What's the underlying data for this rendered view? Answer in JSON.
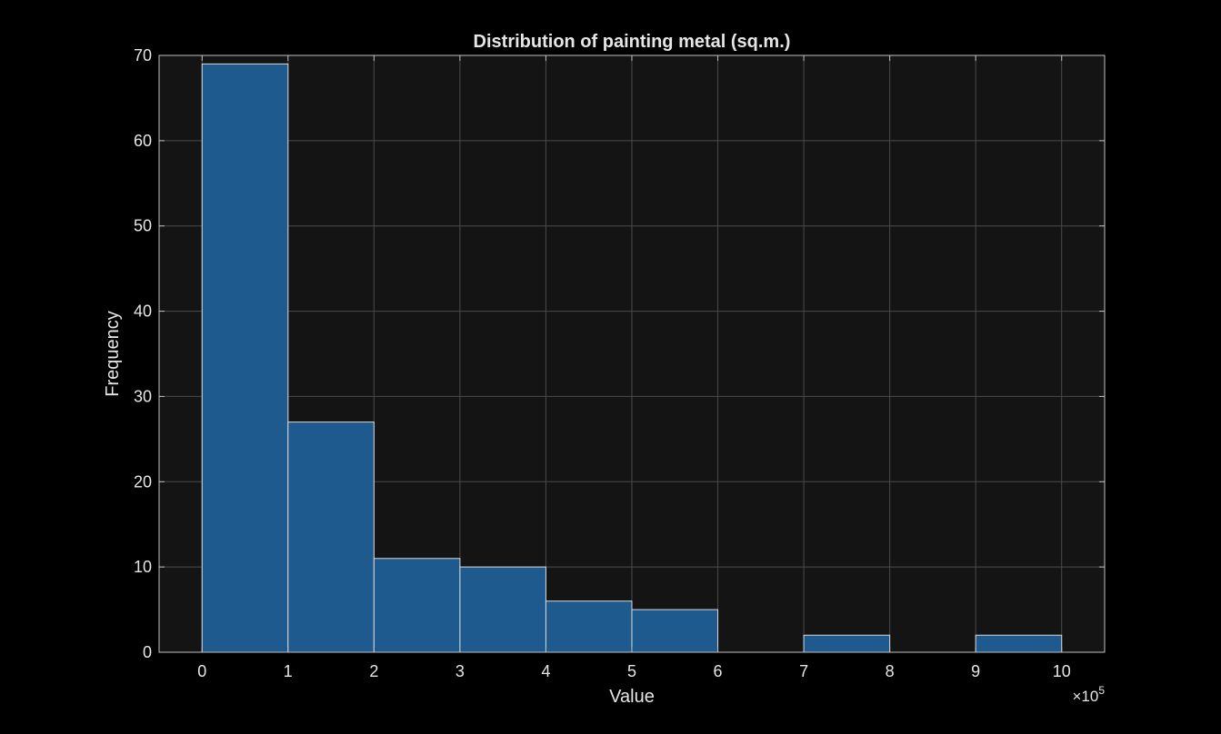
{
  "chart_data": {
    "type": "bar",
    "title": "Distribution of painting metal (sq.m.)",
    "xlabel": "Value",
    "ylabel": "Frequency",
    "x_exponent_label": "×10",
    "x_exponent_power": "5",
    "xlim": [
      -0.5,
      10.5
    ],
    "ylim": [
      0,
      70
    ],
    "xticks": [
      "0",
      "1",
      "2",
      "3",
      "4",
      "5",
      "6",
      "7",
      "8",
      "9",
      "10"
    ],
    "yticks": [
      "0",
      "10",
      "20",
      "30",
      "40",
      "50",
      "60",
      "70"
    ],
    "bin_edges": [
      0,
      1,
      2,
      3,
      4,
      5,
      6,
      7,
      8,
      9,
      10
    ],
    "values": [
      69,
      27,
      11,
      10,
      6,
      5,
      0,
      2,
      0,
      2
    ],
    "grid": true,
    "colors": {
      "background": "#000000",
      "plot_background": "#141414",
      "bar_fill": "#1f5a8f",
      "bar_edge": "#d9d9d9",
      "grid": "#4a4a4a",
      "axis": "#bfbfbf",
      "text": "#e6e6e6"
    }
  }
}
